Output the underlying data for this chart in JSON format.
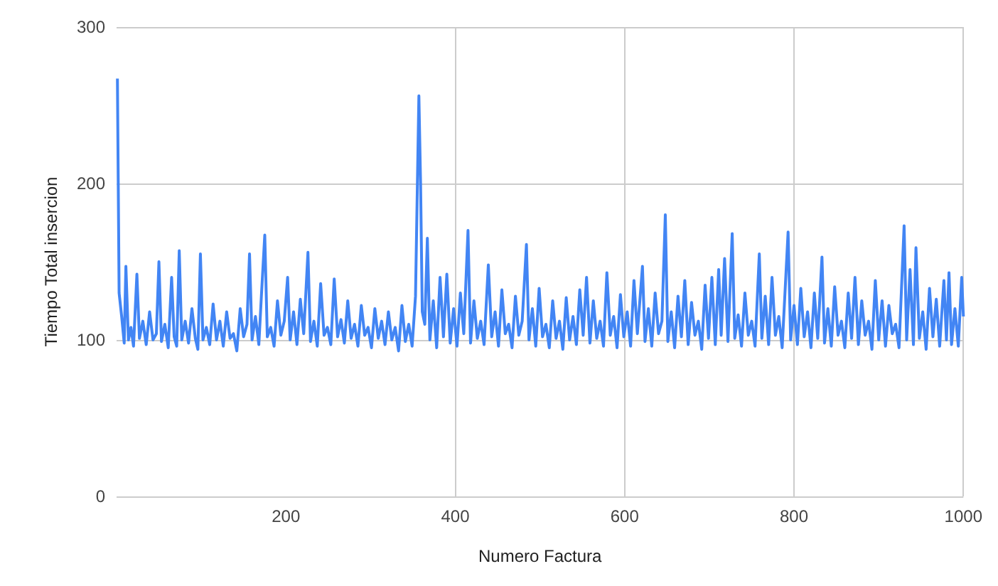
{
  "chart_data": {
    "type": "line",
    "xlabel": "Numero Factura",
    "ylabel": "Tiempo Total insercion",
    "xlim": [
      0,
      1000
    ],
    "xticks": [
      200,
      400,
      600,
      800,
      1000
    ],
    "ylim": [
      0,
      300
    ],
    "yticks": [
      0,
      100,
      200,
      300
    ],
    "grid": true,
    "marker": "none",
    "line_style": "solid",
    "series": [
      {
        "color": "#4285f4",
        "x": [
          1,
          3,
          6,
          9,
          11,
          14,
          17,
          20,
          24,
          27,
          31,
          35,
          39,
          43,
          47,
          50,
          53,
          57,
          61,
          65,
          68,
          71,
          74,
          77,
          81,
          85,
          89,
          93,
          96,
          99,
          102,
          106,
          110,
          114,
          118,
          122,
          126,
          130,
          134,
          138,
          142,
          146,
          150,
          154,
          157,
          160,
          164,
          168,
          171,
          175,
          178,
          182,
          186,
          190,
          194,
          198,
          202,
          205,
          209,
          213,
          217,
          221,
          226,
          229,
          233,
          237,
          241,
          245,
          249,
          253,
          257,
          261,
          265,
          269,
          273,
          277,
          281,
          285,
          289,
          293,
          297,
          301,
          305,
          309,
          313,
          317,
          321,
          325,
          329,
          333,
          337,
          341,
          345,
          349,
          353,
          357,
          359,
          361,
          364,
          367,
          370,
          374,
          378,
          382,
          386,
          390,
          394,
          398,
          402,
          406,
          410,
          415,
          418,
          422,
          426,
          430,
          434,
          439,
          443,
          447,
          451,
          455,
          459,
          463,
          467,
          471,
          475,
          479,
          484,
          487,
          491,
          495,
          499,
          503,
          507,
          511,
          515,
          519,
          523,
          527,
          531,
          535,
          539,
          543,
          547,
          551,
          555,
          559,
          563,
          567,
          571,
          575,
          579,
          583,
          587,
          591,
          595,
          599,
          603,
          607,
          611,
          615,
          621,
          624,
          628,
          632,
          636,
          640,
          644,
          648,
          651,
          655,
          659,
          663,
          667,
          671,
          675,
          679,
          683,
          687,
          691,
          695,
          699,
          703,
          707,
          711,
          714,
          718,
          722,
          727,
          730,
          734,
          738,
          742,
          746,
          750,
          754,
          759,
          762,
          766,
          770,
          774,
          778,
          782,
          786,
          793,
          796,
          800,
          804,
          808,
          812,
          816,
          820,
          824,
          828,
          833,
          836,
          840,
          844,
          848,
          852,
          856,
          860,
          864,
          868,
          872,
          876,
          880,
          884,
          888,
          892,
          896,
          900,
          904,
          908,
          912,
          916,
          920,
          924,
          930,
          933,
          937,
          941,
          944,
          948,
          952,
          956,
          960,
          964,
          968,
          972,
          977,
          980,
          983,
          986,
          990,
          994,
          998,
          1000
        ],
        "values": [
          267,
          130,
          115,
          98,
          147,
          100,
          108,
          96,
          142,
          101,
          112,
          97,
          118,
          100,
          104,
          150,
          99,
          110,
          95,
          140,
          102,
          96,
          157,
          100,
          112,
          98,
          120,
          101,
          94,
          155,
          100,
          108,
          97,
          123,
          100,
          112,
          96,
          118,
          101,
          104,
          93,
          120,
          102,
          110,
          155,
          100,
          115,
          97,
          128,
          167,
          102,
          108,
          96,
          125,
          103,
          112,
          140,
          100,
          118,
          97,
          126,
          104,
          156,
          99,
          112,
          96,
          136,
          103,
          108,
          97,
          139,
          102,
          113,
          98,
          125,
          101,
          110,
          96,
          122,
          103,
          108,
          95,
          120,
          101,
          112,
          97,
          118,
          100,
          108,
          93,
          122,
          99,
          110,
          96,
          128,
          256,
          200,
          118,
          110,
          165,
          100,
          125,
          95,
          140,
          102,
          142,
          98,
          120,
          96,
          130,
          104,
          170,
          98,
          125,
          101,
          112,
          97,
          148,
          102,
          118,
          96,
          132,
          104,
          110,
          95,
          128,
          103,
          112,
          161,
          100,
          120,
          96,
          133,
          102,
          110,
          95,
          125,
          101,
          112,
          94,
          127,
          100,
          115,
          97,
          132,
          103,
          140,
          98,
          125,
          101,
          112,
          96,
          143,
          103,
          115,
          95,
          129,
          102,
          118,
          96,
          138,
          104,
          147,
          99,
          120,
          96,
          130,
          104,
          112,
          180,
          99,
          118,
          95,
          128,
          102,
          138,
          97,
          124,
          103,
          112,
          94,
          135,
          101,
          140,
          97,
          145,
          103,
          152,
          99,
          168,
          101,
          116,
          96,
          130,
          103,
          112,
          96,
          155,
          101,
          128,
          97,
          140,
          103,
          115,
          95,
          169,
          100,
          122,
          97,
          133,
          102,
          118,
          95,
          130,
          101,
          153,
          98,
          120,
          96,
          134,
          103,
          112,
          95,
          130,
          101,
          140,
          97,
          125,
          103,
          112,
          94,
          138,
          100,
          125,
          96,
          122,
          104,
          110,
          95,
          173,
          100,
          145,
          97,
          159,
          101,
          118,
          94,
          133,
          102,
          126,
          96,
          138,
          100,
          143,
          97,
          120,
          96,
          140,
          115
        ]
      }
    ]
  }
}
